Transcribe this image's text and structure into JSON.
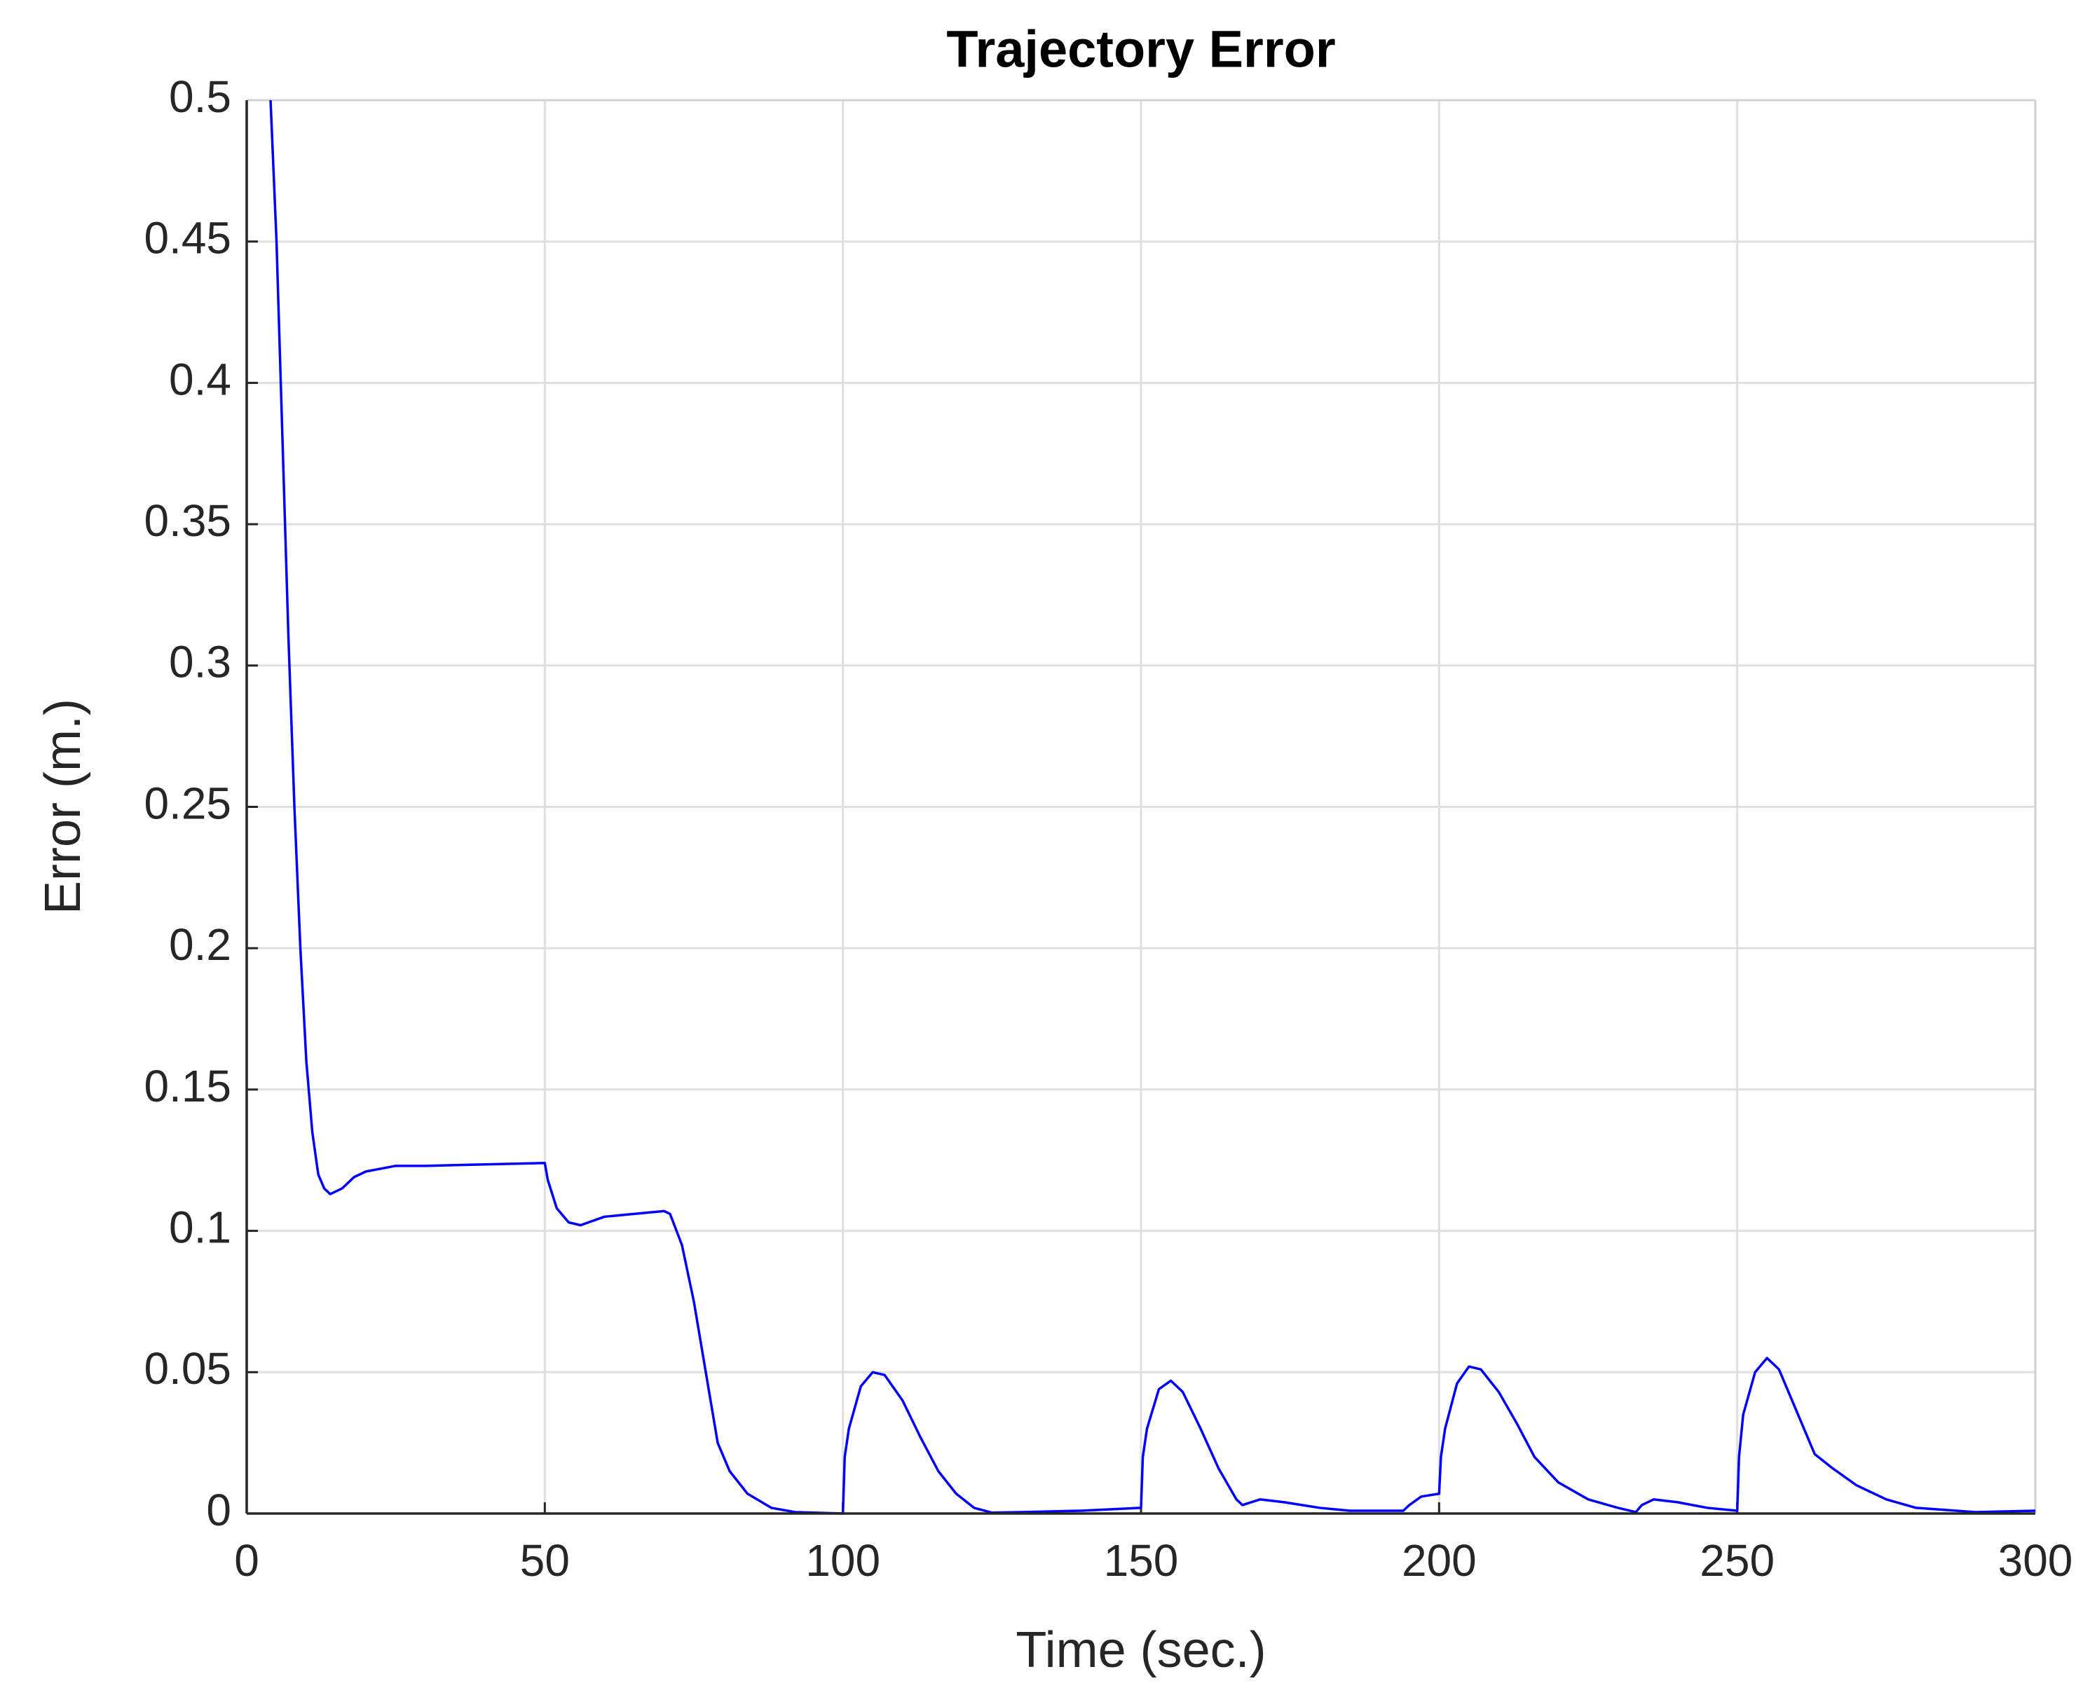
{
  "chart_data": {
    "type": "line",
    "title": "Trajectory Error",
    "xlabel": "Time (sec.)",
    "ylabel": "Error (m.)",
    "xlim": [
      0,
      300
    ],
    "ylim": [
      0,
      0.5
    ],
    "xticks": [
      0,
      50,
      100,
      150,
      200,
      250,
      300
    ],
    "yticks": [
      0,
      0.05,
      0.1,
      0.15,
      0.2,
      0.25,
      0.3,
      0.35,
      0.4,
      0.45,
      0.5
    ],
    "grid": true,
    "x": [
      4,
      5,
      6,
      7,
      8,
      9,
      10,
      11,
      12,
      13,
      14,
      16,
      18,
      20,
      25,
      30,
      40,
      50,
      50.5,
      52,
      54,
      56,
      60,
      65,
      70,
      71,
      73,
      75,
      77,
      79,
      81,
      84,
      88,
      92,
      100,
      100.3,
      101,
      103,
      105,
      107,
      110,
      113,
      116,
      119,
      122,
      125,
      130,
      140,
      150,
      150.3,
      151,
      153,
      155,
      157,
      160,
      163,
      166,
      167,
      170,
      174,
      180,
      185,
      190,
      194,
      195,
      197,
      200,
      200.3,
      201,
      203,
      205,
      207,
      210,
      213,
      216,
      220,
      225,
      230,
      233,
      234,
      236,
      240,
      245,
      250,
      250.3,
      251,
      253,
      255,
      257,
      260,
      263,
      266,
      270,
      275,
      280,
      290,
      300
    ],
    "series": [
      {
        "name": "Error",
        "color": "#0000ff",
        "values": [
          0.5,
          0.45,
          0.38,
          0.31,
          0.25,
          0.2,
          0.16,
          0.135,
          0.12,
          0.115,
          0.113,
          0.115,
          0.119,
          0.121,
          0.123,
          0.123,
          0.1235,
          0.124,
          0.118,
          0.108,
          0.103,
          0.102,
          0.105,
          0.106,
          0.107,
          0.106,
          0.095,
          0.075,
          0.05,
          0.025,
          0.015,
          0.007,
          0.002,
          0.0005,
          0,
          0.02,
          0.03,
          0.045,
          0.05,
          0.049,
          0.04,
          0.027,
          0.015,
          0.007,
          0.002,
          0.0003,
          0.0005,
          0.001,
          0.002,
          0.02,
          0.03,
          0.044,
          0.047,
          0.043,
          0.03,
          0.016,
          0.005,
          0.003,
          0.005,
          0.004,
          0.002,
          0.001,
          0.001,
          0.001,
          0.003,
          0.006,
          0.007,
          0.02,
          0.03,
          0.046,
          0.052,
          0.051,
          0.043,
          0.032,
          0.02,
          0.011,
          0.005,
          0.002,
          0.0005,
          0.003,
          0.005,
          0.004,
          0.002,
          0.001,
          0.02,
          0.035,
          0.05,
          0.055,
          0.051,
          0.036,
          0.021,
          0.016,
          0.01,
          0.005,
          0.002,
          0.0005,
          0.001
        ]
      }
    ]
  }
}
